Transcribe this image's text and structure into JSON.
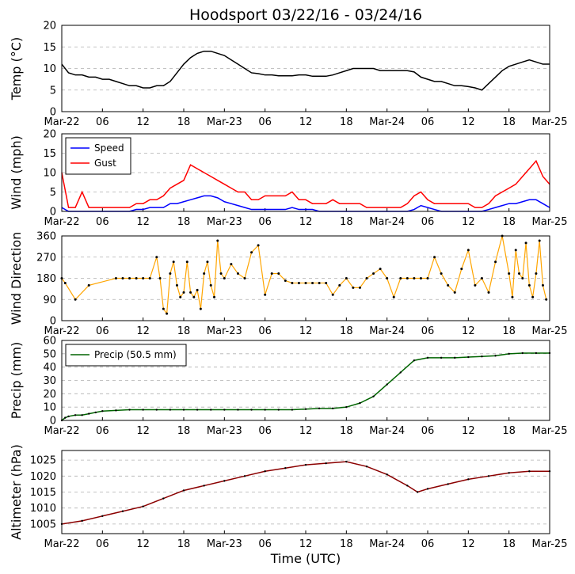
{
  "title": "Hoodsport 03/22/16 - 03/24/16",
  "xlabel": "Time (UTC)",
  "x_tick_labels": [
    "Mar-22",
    "06",
    "12",
    "18",
    "Mar-23",
    "06",
    "12",
    "18",
    "Mar-24",
    "06",
    "12",
    "18",
    "Mar-25"
  ],
  "colors": {
    "temp": "#000000",
    "speed": "#0000ff",
    "gust": "#ff0000",
    "direction_line": "#ffa500",
    "precip": "#006400",
    "altimeter": "#8b0000",
    "grid": "#b0b0b0"
  },
  "chart_data": [
    {
      "type": "line",
      "ylabel": "Temp ($^\\circ$C)",
      "ylabel_display": "Temp (°C)",
      "ylim": [
        0,
        20
      ],
      "yticks": [
        0,
        5,
        10,
        15,
        20
      ],
      "x_hours": [
        0,
        1,
        2,
        3,
        4,
        5,
        6,
        7,
        8,
        9,
        10,
        11,
        12,
        13,
        14,
        15,
        16,
        17,
        18,
        19,
        20,
        21,
        22,
        23,
        24,
        25,
        26,
        27,
        28,
        29,
        30,
        31,
        32,
        33,
        34,
        35,
        36,
        37,
        38,
        39,
        40,
        41,
        42,
        43,
        44,
        45,
        46,
        47,
        48,
        49,
        50,
        51,
        52,
        53,
        54,
        55,
        56,
        57,
        58,
        59,
        60,
        61,
        62,
        63,
        64,
        65,
        66,
        67,
        68,
        69,
        70,
        71,
        72
      ],
      "series": [
        {
          "values": [
            11,
            9,
            8.5,
            8.5,
            8,
            8,
            7.5,
            7.5,
            7,
            6.5,
            6,
            6,
            5.5,
            5.5,
            6,
            6,
            7,
            9,
            11,
            12.5,
            13.5,
            14,
            14,
            13.5,
            13,
            12,
            11,
            10,
            9,
            8.8,
            8.5,
            8.5,
            8.3,
            8.3,
            8.3,
            8.5,
            8.5,
            8.2,
            8.2,
            8.2,
            8.5,
            9,
            9.5,
            10,
            10,
            10,
            10,
            9.5,
            9.5,
            9.5,
            9.5,
            9.5,
            9.2,
            8,
            7.5,
            7,
            7,
            6.5,
            6,
            6,
            5.8,
            5.5,
            5,
            6.5,
            8,
            9.5,
            10.5,
            11,
            11.5,
            12,
            11.5,
            11,
            11
          ]
        }
      ]
    },
    {
      "type": "line",
      "ylabel": "Wind (mph)",
      "ylim": [
        0,
        20
      ],
      "yticks": [
        0,
        5,
        10,
        15,
        20
      ],
      "legend": "top-left",
      "x_hours": [
        0,
        1,
        2,
        3,
        4,
        5,
        6,
        7,
        8,
        9,
        10,
        11,
        12,
        13,
        14,
        15,
        16,
        17,
        18,
        19,
        20,
        21,
        22,
        23,
        24,
        25,
        26,
        27,
        28,
        29,
        30,
        31,
        32,
        33,
        34,
        35,
        36,
        37,
        38,
        39,
        40,
        41,
        42,
        43,
        44,
        45,
        46,
        47,
        48,
        49,
        50,
        51,
        52,
        53,
        54,
        55,
        56,
        57,
        58,
        59,
        60,
        61,
        62,
        63,
        64,
        65,
        66,
        67,
        68,
        69,
        70,
        71,
        72
      ],
      "series": [
        {
          "name": "Speed",
          "values": [
            1,
            0,
            0,
            0,
            0,
            0,
            0,
            0,
            0,
            0,
            0,
            0.5,
            0.5,
            1,
            1,
            1,
            2,
            2,
            2.5,
            3,
            3.5,
            4,
            4,
            3.5,
            2.5,
            2,
            1.5,
            1,
            0.5,
            0.5,
            0.5,
            0.5,
            0.5,
            0.5,
            1,
            0.5,
            0.5,
            0.5,
            0,
            0,
            0,
            0,
            0,
            0,
            0,
            0,
            0,
            0,
            0,
            0,
            0,
            0,
            0.5,
            1.5,
            1,
            0.5,
            0,
            0,
            0,
            0,
            0,
            0,
            0,
            0.5,
            1,
            1.5,
            2,
            2,
            2.5,
            3,
            3,
            2,
            1
          ]
        },
        {
          "name": "Gust",
          "values": [
            10,
            1,
            1,
            5,
            1,
            1,
            1,
            1,
            1,
            1,
            1,
            2,
            2,
            3,
            3,
            4,
            6,
            7,
            8,
            12,
            11,
            10,
            9,
            8,
            7,
            6,
            5,
            5,
            3,
            3,
            4,
            4,
            4,
            4,
            5,
            3,
            3,
            2,
            2,
            2,
            3,
            2,
            2,
            2,
            2,
            1,
            1,
            1,
            1,
            1,
            1,
            2,
            4,
            5,
            3,
            2,
            2,
            2,
            2,
            2,
            2,
            1,
            1,
            2,
            4,
            5,
            6,
            7,
            9,
            11,
            13,
            9,
            7
          ]
        }
      ]
    },
    {
      "type": "scatter",
      "ylabel": "Wind Direction",
      "ylim": [
        0,
        360
      ],
      "yticks": [
        0,
        90,
        180,
        270,
        360
      ],
      "x_hours": [
        0,
        0.5,
        2,
        4,
        8,
        9,
        10,
        11,
        12,
        13,
        14,
        14.5,
        15,
        15.5,
        16,
        16.5,
        17,
        17.5,
        18,
        18.5,
        19,
        19.5,
        20,
        20.5,
        21,
        21.5,
        22,
        22.5,
        23,
        23.5,
        24,
        25,
        26,
        27,
        28,
        29,
        30,
        31,
        32,
        33,
        34,
        35,
        36,
        37,
        38,
        39,
        40,
        41,
        42,
        43,
        44,
        45,
        46,
        47,
        48,
        49,
        50,
        51,
        52,
        53,
        54,
        55,
        56,
        57,
        58,
        59,
        60,
        61,
        62,
        63,
        64,
        65,
        66,
        66.5,
        67,
        67.5,
        68,
        68.5,
        69,
        69.5,
        70,
        70.5,
        71,
        71.5
      ],
      "series": [
        {
          "values": [
            180,
            160,
            90,
            150,
            180,
            180,
            180,
            180,
            180,
            180,
            270,
            180,
            50,
            30,
            200,
            250,
            150,
            100,
            120,
            250,
            120,
            100,
            130,
            50,
            200,
            250,
            150,
            100,
            340,
            200,
            180,
            240,
            200,
            180,
            290,
            320,
            110,
            200,
            200,
            170,
            160,
            160,
            160,
            160,
            160,
            160,
            110,
            150,
            180,
            140,
            140,
            180,
            200,
            220,
            180,
            100,
            180,
            180,
            180,
            180,
            180,
            270,
            200,
            150,
            120,
            220,
            300,
            150,
            180,
            120,
            250,
            360,
            200,
            100,
            300,
            200,
            180,
            330,
            150,
            100,
            200,
            340,
            150,
            90
          ]
        }
      ]
    },
    {
      "type": "line",
      "ylabel": "Precip (mm)",
      "ylim": [
        0,
        60
      ],
      "yticks": [
        0,
        10,
        20,
        30,
        40,
        50,
        60
      ],
      "legend": "top-left",
      "x_hours": [
        0,
        0.5,
        1,
        2,
        3,
        4,
        5,
        6,
        8,
        10,
        12,
        14,
        16,
        18,
        20,
        22,
        24,
        26,
        28,
        30,
        32,
        34,
        36,
        38,
        40,
        42,
        44,
        46,
        48,
        50,
        52,
        54,
        56,
        58,
        60,
        62,
        64,
        66,
        68,
        70,
        72
      ],
      "series": [
        {
          "name": "Precip (50.5 mm)",
          "values": [
            0,
            2,
            3,
            4,
            4,
            5,
            6,
            7,
            7.5,
            8,
            8,
            8,
            8,
            8,
            8,
            8,
            8,
            8,
            8,
            8,
            8,
            8,
            8.5,
            9,
            9,
            10,
            13,
            18,
            27,
            36,
            45,
            47,
            47,
            47,
            47.5,
            48,
            48.5,
            50,
            50.5,
            50.5,
            50.5
          ]
        }
      ]
    },
    {
      "type": "line",
      "ylabel": "Altimeter (hPa)",
      "ylim": [
        1002,
        1028
      ],
      "yticks": [
        1005,
        1010,
        1015,
        1020,
        1025
      ],
      "x_hours": [
        0,
        3,
        6,
        9,
        12,
        15,
        18,
        21,
        24,
        27,
        30,
        33,
        36,
        39,
        42,
        45,
        48,
        51,
        52.5,
        54,
        57,
        60,
        63,
        66,
        69,
        72
      ],
      "series": [
        {
          "values": [
            1005,
            1006,
            1007.5,
            1009,
            1010.5,
            1013,
            1015.5,
            1017,
            1018.5,
            1020,
            1021.5,
            1022.5,
            1023.5,
            1024,
            1024.5,
            1023,
            1020.5,
            1017,
            1015,
            1016,
            1017.5,
            1019,
            1020,
            1021,
            1021.5,
            1021.5
          ]
        }
      ]
    }
  ]
}
